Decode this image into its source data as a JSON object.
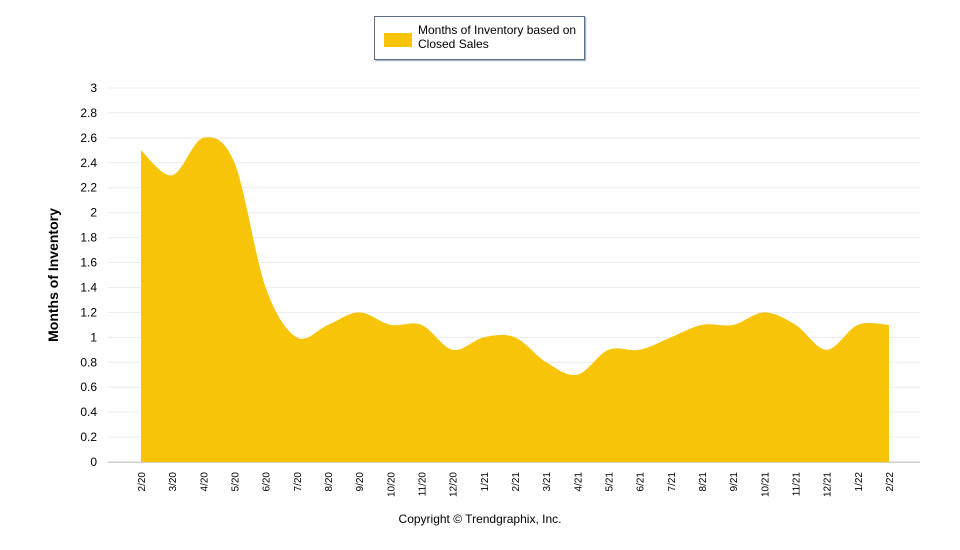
{
  "chart_data": {
    "type": "area",
    "title": "",
    "xlabel": "",
    "ylabel": "Months of Inventory",
    "ylim": [
      0,
      3
    ],
    "yticks": [
      "0",
      "0.2",
      "0.4",
      "0.6",
      "0.8",
      "1",
      "1.2",
      "1.4",
      "1.6",
      "1.8",
      "2",
      "2.2",
      "2.4",
      "2.6",
      "2.8",
      "3"
    ],
    "grid": true,
    "legend_position": "top-center",
    "categories": [
      "2/20",
      "3/20",
      "4/20",
      "5/20",
      "6/20",
      "7/20",
      "8/20",
      "9/20",
      "10/20",
      "11/20",
      "12/20",
      "1/21",
      "2/21",
      "3/21",
      "4/21",
      "5/21",
      "6/21",
      "7/21",
      "8/21",
      "9/21",
      "10/21",
      "11/21",
      "12/21",
      "1/22",
      "2/22"
    ],
    "series": [
      {
        "name": "Months of Inventory based on Closed Sales",
        "color": "#f7c407",
        "values": [
          2.5,
          2.3,
          2.6,
          2.4,
          1.4,
          1.0,
          1.1,
          1.2,
          1.1,
          1.1,
          0.9,
          1.0,
          1.0,
          0.8,
          0.7,
          0.9,
          0.9,
          1.0,
          1.1,
          1.1,
          1.2,
          1.1,
          0.9,
          1.1,
          1.1
        ]
      }
    ]
  },
  "legend": {
    "label": "Months of Inventory based on Closed Sales",
    "color": "#f7c407"
  },
  "copyright": "Copyright © Trendgraphix, Inc."
}
